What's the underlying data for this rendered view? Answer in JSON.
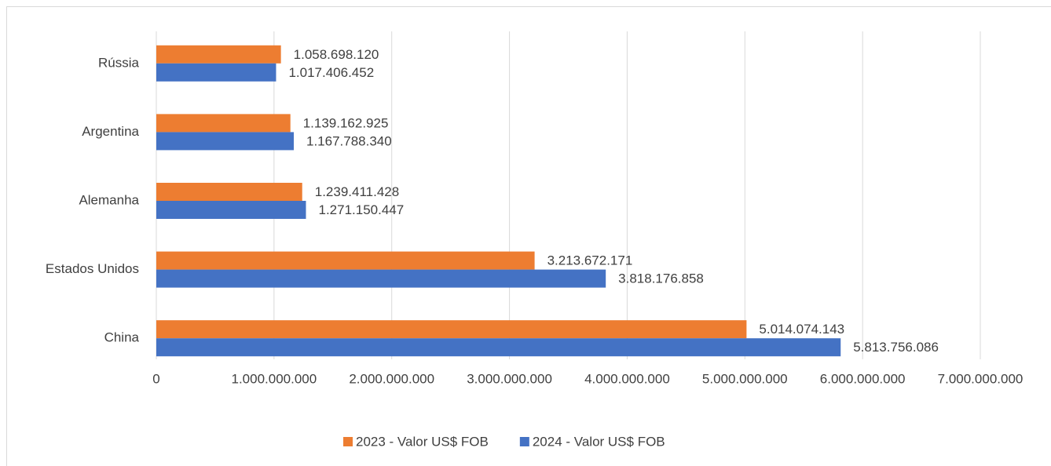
{
  "chart_data": {
    "type": "hbar",
    "categories": [
      "Rússia",
      "Argentina",
      "Alemanha",
      "Estados Unidos",
      "China"
    ],
    "series": [
      {
        "name": "2023 - Valor US$ FOB",
        "color": "#ed7d31",
        "values": [
          1058698120,
          1139162925,
          1239411428,
          3213672171,
          5014074143
        ],
        "value_labels": [
          "1.058.698.120",
          "1.139.162.925",
          "1.239.411.428",
          "3.213.672.171",
          "5.014.074.143"
        ]
      },
      {
        "name": "2024 - Valor US$ FOB",
        "color": "#4472c4",
        "values": [
          1017406452,
          1167788340,
          1271150447,
          3818176858,
          5813756086
        ],
        "value_labels": [
          "1.017.406.452",
          "1.167.788.340",
          "1.271.150.447",
          "3.818.176.858",
          "5.813.756.086"
        ]
      }
    ],
    "xlim": [
      0,
      7000000000
    ],
    "xticks": [
      0,
      {
        "value": 1000000000,
        "label": "1.000.000.000"
      },
      {
        "value": 2000000000,
        "label": "2.000.000.000"
      },
      {
        "value": 3000000000,
        "label": "3.000.000.000"
      },
      {
        "value": 4000000000,
        "label": "4.000.000.000"
      },
      {
        "value": 5000000000,
        "label": "5.000.000.000"
      },
      {
        "value": 6000000000,
        "label": "6.000.000.000"
      },
      {
        "value": 7000000000,
        "label": "7.000.000.000"
      }
    ],
    "grid": true,
    "legend": "bottom"
  }
}
